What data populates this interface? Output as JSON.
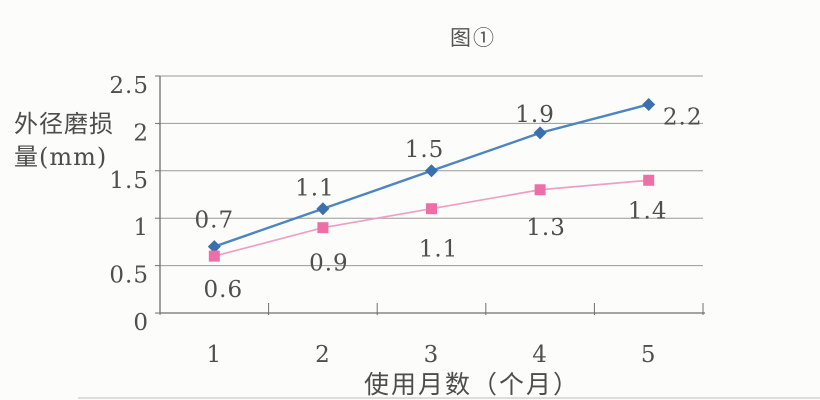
{
  "chart_data": {
    "type": "line",
    "title": "图①",
    "ylabel": "外径磨损量(mm)",
    "ylabel_lines": [
      "外径磨损",
      "量(mm)"
    ],
    "xlabel": "使用月数（个月）",
    "x": [
      1,
      2,
      3,
      4,
      5
    ],
    "x_tick_labels": [
      "1",
      "2",
      "3",
      "4",
      "5"
    ],
    "y_ticks": [
      0,
      0.5,
      1,
      1.5,
      2,
      2.5
    ],
    "y_tick_labels": [
      "0",
      "0.5",
      "1",
      "1.5",
      "2",
      "2.5"
    ],
    "ylim": [
      0,
      2.5
    ],
    "grid": "horizontal",
    "legend_position": "none",
    "series": [
      {
        "name": "blue_diamond",
        "marker": "diamond",
        "marker_color": "#3a70ad",
        "line_color": "#4d85c0",
        "values": [
          0.7,
          1.1,
          1.5,
          1.9,
          2.2
        ],
        "point_labels": [
          "0.7",
          "1.1",
          "1.5",
          "1.9",
          "2.2"
        ]
      },
      {
        "name": "pink_square",
        "marker": "square",
        "marker_color": "#ee6fa8",
        "line_color": "#eda0c6",
        "values": [
          0.6,
          0.9,
          1.1,
          1.3,
          1.4
        ],
        "point_labels": [
          "0.6",
          "0.9",
          "1.1",
          "1.3",
          "1.4"
        ]
      }
    ]
  },
  "colors": {
    "background": "#fcfcfa",
    "grid": "#9a9a9a",
    "axis": "#6f6f6f",
    "text": "#4f4f4f",
    "artifact": "#d5d5d1"
  }
}
